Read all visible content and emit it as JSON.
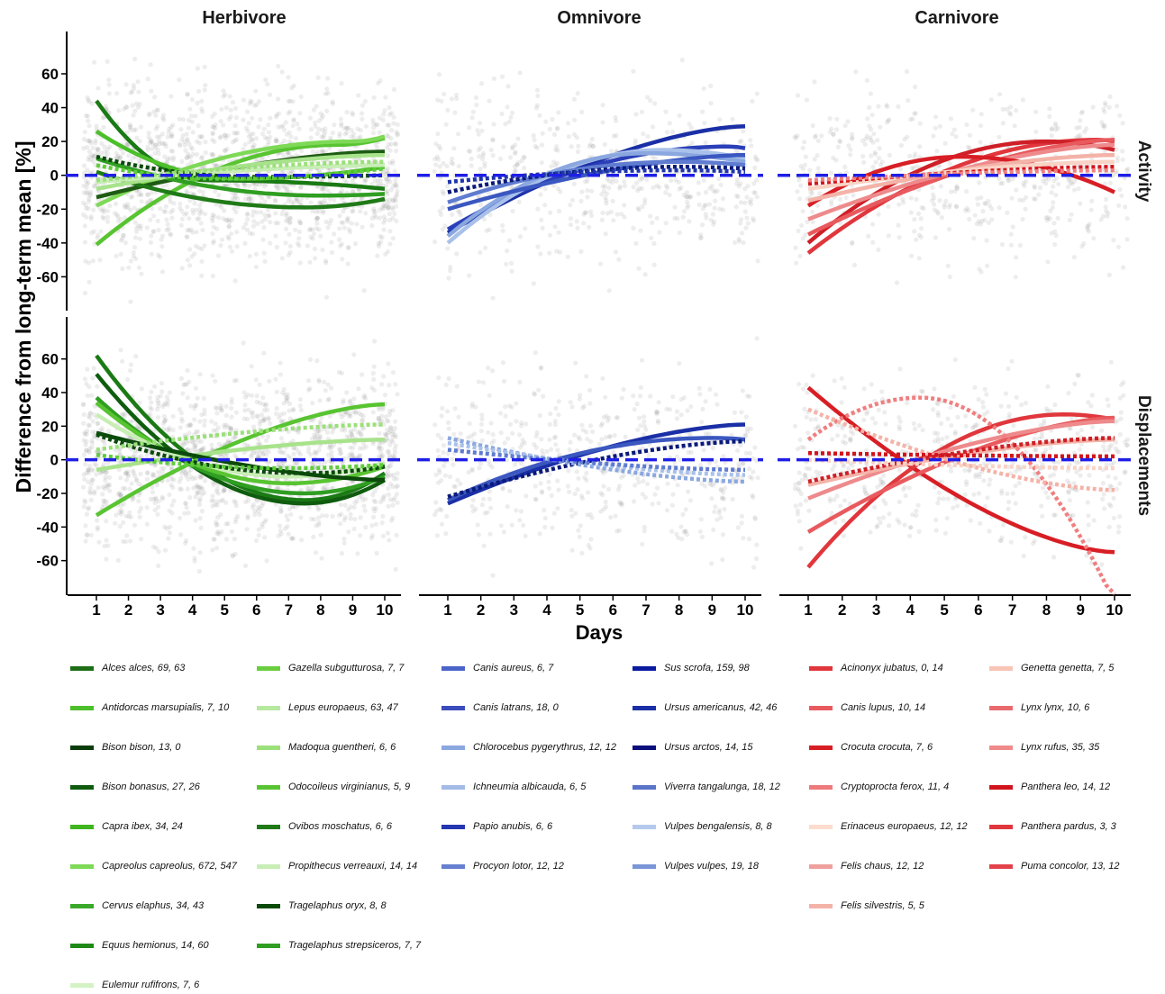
{
  "chart_data": {
    "type": "line",
    "ylabel": "Difference from long-term mean [%]",
    "xlabel": "Days",
    "x": [
      1,
      2,
      3,
      4,
      5,
      6,
      7,
      8,
      9,
      10
    ],
    "x_ticks": [
      "1",
      "2",
      "3",
      "4",
      "5",
      "6",
      "7",
      "8",
      "9",
      "10"
    ],
    "y_ticks": [
      "-60",
      "-40",
      "-20",
      "0",
      "20",
      "40",
      "60"
    ],
    "ylim": [
      -80,
      85
    ],
    "grid": false,
    "reference_line": {
      "y": 0,
      "style": "dashed",
      "color": "#1f1fe6"
    },
    "columns": [
      "Herbivore",
      "Omnivore",
      "Carnivore"
    ],
    "rows": [
      "Activity",
      "Displacements"
    ],
    "panels": [
      {
        "column": "Herbivore",
        "row": "Activity",
        "series": [
          {
            "start": 44,
            "end": -8,
            "peak": -3,
            "peak_x": 4.5,
            "style": "solid",
            "color": "#1a7a14"
          },
          {
            "start": 26,
            "end": 5,
            "peak": -2,
            "peak_x": 5.5,
            "style": "solid",
            "color": "#4cbf2a"
          },
          {
            "start": -41,
            "end": 22,
            "peak": 18,
            "peak_x": 8.5,
            "style": "solid",
            "color": "#58c431"
          },
          {
            "start": -18,
            "end": 23,
            "peak": 20,
            "peak_x": 9,
            "style": "solid",
            "color": "#7ed957"
          },
          {
            "start": -13,
            "end": 14,
            "peak": 14,
            "peak_x": 10,
            "style": "solid",
            "color": "#1e5c14"
          },
          {
            "start": 2,
            "end": -14,
            "peak": -19,
            "peak_x": 7.5,
            "style": "solid",
            "color": "#1f7a17"
          },
          {
            "start": 10,
            "end": -11,
            "peak": -12,
            "peak_x": 8,
            "style": "solid",
            "color": "#2f9e22"
          },
          {
            "start": -8,
            "end": 12,
            "peak": 12,
            "peak_x": 10,
            "style": "solid",
            "color": "#a8e38c"
          },
          {
            "start": -4,
            "end": 6,
            "peak": 6,
            "peak_x": 10,
            "style": "solid",
            "color": "#c8eeb5"
          },
          {
            "start": 11,
            "end": 0,
            "peak": -1,
            "peak_x": 6,
            "style": "dotted",
            "color": "#0b4a0b"
          },
          {
            "start": 6,
            "end": 4,
            "peak": -2,
            "peak_x": 5,
            "style": "dotted",
            "color": "#5fcd3b"
          },
          {
            "start": -3,
            "end": 8,
            "peak": 8,
            "peak_x": 10,
            "style": "dotted",
            "color": "#9be07a"
          }
        ]
      },
      {
        "column": "Omnivore",
        "row": "Activity",
        "series": [
          {
            "start": -34,
            "end": 29,
            "peak": 29,
            "peak_x": 10,
            "style": "solid",
            "color": "#1a2fa6"
          },
          {
            "start": -32,
            "end": 16,
            "peak": 17,
            "peak_x": 9.5,
            "style": "solid",
            "color": "#2a3fb8"
          },
          {
            "start": -40,
            "end": 10,
            "peak": 15,
            "peak_x": 7.5,
            "style": "solid",
            "color": "#a9c1ea"
          },
          {
            "start": -36,
            "end": 8,
            "peak": 13,
            "peak_x": 7,
            "style": "solid",
            "color": "#8aa7df"
          },
          {
            "start": -20,
            "end": 12,
            "peak": 12,
            "peak_x": 10,
            "style": "solid",
            "color": "#3b57c0"
          },
          {
            "start": -16,
            "end": 6,
            "peak": 8,
            "peak_x": 8,
            "style": "solid",
            "color": "#5f7cd0"
          },
          {
            "start": -10,
            "end": 4,
            "peak": 5,
            "peak_x": 8,
            "style": "dotted",
            "color": "#0a1a7a"
          },
          {
            "start": -4,
            "end": 2,
            "peak": 3,
            "peak_x": 8,
            "style": "dotted",
            "color": "#1f35a8"
          }
        ]
      },
      {
        "column": "Carnivore",
        "row": "Activity",
        "series": [
          {
            "start": -46,
            "end": 20,
            "peak": 21,
            "peak_x": 9.5,
            "style": "solid",
            "color": "#e0363c"
          },
          {
            "start": -40,
            "end": 15,
            "peak": 20,
            "peak_x": 8,
            "style": "solid",
            "color": "#cf1f27"
          },
          {
            "start": -35,
            "end": 21,
            "peak": 21,
            "peak_x": 10,
            "style": "solid",
            "color": "#e85a5e"
          },
          {
            "start": -26,
            "end": 18,
            "peak": 18,
            "peak_x": 10,
            "style": "solid",
            "color": "#ee8a8c"
          },
          {
            "start": -18,
            "end": -10,
            "peak": 11,
            "peak_x": 5.5,
            "style": "solid",
            "color": "#d81e25"
          },
          {
            "start": -15,
            "end": 12,
            "peak": 12,
            "peak_x": 10,
            "style": "solid",
            "color": "#f4b3a8"
          },
          {
            "start": -8,
            "end": 8,
            "peak": 8,
            "peak_x": 10,
            "style": "solid",
            "color": "#f9d3c5"
          },
          {
            "start": -5,
            "end": 5,
            "peak": 5,
            "peak_x": 10,
            "style": "dotted",
            "color": "#d2141c"
          },
          {
            "start": -3,
            "end": 3,
            "peak": 3,
            "peak_x": 10,
            "style": "dotted",
            "color": "#f07f80"
          }
        ]
      },
      {
        "column": "Herbivore",
        "row": "Displacements",
        "series": [
          {
            "start": 62,
            "end": -8,
            "peak": -24,
            "peak_x": 7.5,
            "style": "solid",
            "color": "#1a7a14"
          },
          {
            "start": 51,
            "end": -12,
            "peak": -26,
            "peak_x": 7.5,
            "style": "solid",
            "color": "#0f5c0f"
          },
          {
            "start": 37,
            "end": -10,
            "peak": -20,
            "peak_x": 7.5,
            "style": "solid",
            "color": "#2f9e22"
          },
          {
            "start": 34,
            "end": -4,
            "peak": -14,
            "peak_x": 7,
            "style": "solid",
            "color": "#58c431"
          },
          {
            "start": 27,
            "end": -2,
            "peak": -10,
            "peak_x": 7,
            "style": "solid",
            "color": "#c8eeb5"
          },
          {
            "start": -33,
            "end": 33,
            "peak": 33,
            "peak_x": 10,
            "style": "solid",
            "color": "#58c431"
          },
          {
            "start": -6,
            "end": 12,
            "peak": 12,
            "peak_x": 10,
            "style": "solid",
            "color": "#a8e38c"
          },
          {
            "start": 16,
            "end": -12,
            "peak": -12,
            "peak_x": 10,
            "style": "solid",
            "color": "#0b4a0b"
          },
          {
            "start": 15,
            "end": -4,
            "peak": -8,
            "peak_x": 7.5,
            "style": "dotted",
            "color": "#0b4a0b"
          },
          {
            "start": 6,
            "end": 21,
            "peak": 21,
            "peak_x": 10,
            "style": "dotted",
            "color": "#9be07a"
          },
          {
            "start": 3,
            "end": -3,
            "peak": -5,
            "peak_x": 7,
            "style": "dotted",
            "color": "#5fcd3b"
          }
        ]
      },
      {
        "column": "Omnivore",
        "row": "Displacements",
        "series": [
          {
            "start": -26,
            "end": 21,
            "peak": 21,
            "peak_x": 10,
            "style": "solid",
            "color": "#1a2fa6"
          },
          {
            "start": -24,
            "end": 12,
            "peak": 13,
            "peak_x": 9,
            "style": "solid",
            "color": "#3b57c0"
          },
          {
            "start": -22,
            "end": 11,
            "peak": 11,
            "peak_x": 10,
            "style": "dotted",
            "color": "#0a1a7a"
          },
          {
            "start": 13,
            "end": -13,
            "peak": -13,
            "peak_x": 10,
            "style": "dotted",
            "color": "#8aa7df"
          },
          {
            "start": 10,
            "end": -9,
            "peak": -9,
            "peak_x": 10,
            "style": "dotted",
            "color": "#a9c1ea"
          },
          {
            "start": 6,
            "end": -6,
            "peak": -6,
            "peak_x": 10,
            "style": "dotted",
            "color": "#5f7cd0"
          }
        ]
      },
      {
        "column": "Carnivore",
        "row": "Displacements",
        "series": [
          {
            "start": 43,
            "end": -55,
            "peak": -55,
            "peak_x": 10,
            "style": "solid",
            "color": "#d81e25"
          },
          {
            "start": -64,
            "end": 24,
            "peak": 27,
            "peak_x": 8.5,
            "style": "solid",
            "color": "#e0363c"
          },
          {
            "start": -43,
            "end": 25,
            "peak": 25,
            "peak_x": 10,
            "style": "solid",
            "color": "#e85a5e"
          },
          {
            "start": -23,
            "end": 23,
            "peak": 23,
            "peak_x": 10,
            "style": "solid",
            "color": "#ee8a8c"
          },
          {
            "start": -15,
            "end": 12,
            "peak": 12,
            "peak_x": 10,
            "style": "solid",
            "color": "#f4b3a8"
          },
          {
            "start": 12,
            "end": -85,
            "peak": 37,
            "peak_x": 4.3,
            "style": "dotted",
            "color": "#f07f80"
          },
          {
            "start": 30,
            "end": -18,
            "peak": -18,
            "peak_x": 10,
            "style": "dotted",
            "color": "#f4b3a8"
          },
          {
            "start": -13,
            "end": 13,
            "peak": 13,
            "peak_x": 10,
            "style": "dotted",
            "color": "#cf1f27"
          },
          {
            "start": 4,
            "end": 2,
            "peak": 2,
            "peak_x": 10,
            "style": "dotted",
            "color": "#d2141c"
          },
          {
            "start": 0,
            "end": -5,
            "peak": -5,
            "peak_x": 10,
            "style": "dotted",
            "color": "#f9d3c5"
          }
        ]
      }
    ],
    "legend": {
      "position": "bottom",
      "groups": [
        {
          "column": "Herbivore",
          "items": [
            {
              "label": "Alces alces, 69, 63",
              "color": "#1e6e17"
            },
            {
              "label": "Antidorcas marsupialis, 7, 10",
              "color": "#4cbf2a"
            },
            {
              "label": "Bison bison, 13, 0",
              "color": "#0b3d0b"
            },
            {
              "label": "Bison bonasus, 27, 26",
              "color": "#0f5c0f"
            },
            {
              "label": "Capra ibex, 34, 24",
              "color": "#3fb51f"
            },
            {
              "label": "Capreolus capreolus, 672, 547",
              "color": "#7ed957"
            },
            {
              "label": "Cervus elaphus, 34, 43",
              "color": "#3aa82a"
            },
            {
              "label": "Equus hemionus, 14, 60",
              "color": "#1f8a17"
            },
            {
              "label": "Eulemur rufifrons, 7, 6",
              "color": "#d4f2c4"
            },
            {
              "label": "Gazella subgutturosa, 7, 7",
              "color": "#6acd3f"
            },
            {
              "label": "Lepus europaeus, 63, 47",
              "color": "#b7e89f"
            },
            {
              "label": "Madoqua guentheri, 6, 6",
              "color": "#9be07a"
            },
            {
              "label": "Odocoileus virginianus, 5, 9",
              "color": "#58c431"
            },
            {
              "label": "Ovibos moschatus, 6, 6",
              "color": "#1f7a17"
            },
            {
              "label": "Propithecus verreauxi, 14, 14",
              "color": "#c8eeb5"
            },
            {
              "label": "Tragelaphus oryx, 8, 8",
              "color": "#0b4a0b"
            },
            {
              "label": "Tragelaphus strepsiceros, 7, 7",
              "color": "#2f9e22"
            }
          ]
        },
        {
          "column": "Omnivore",
          "items": [
            {
              "label": "Canis aureus, 6, 7",
              "color": "#4a64c8"
            },
            {
              "label": "Canis latrans, 18, 0",
              "color": "#3b4cbc"
            },
            {
              "label": "Chlorocebus pygerythrus, 12, 12",
              "color": "#8aa7df"
            },
            {
              "label": "Ichneumia albicauda, 6, 5",
              "color": "#a3bbe6"
            },
            {
              "label": "Papio anubis, 6, 6",
              "color": "#2437b0"
            },
            {
              "label": "Procyon lotor, 12, 12",
              "color": "#6680d0"
            },
            {
              "label": "Sus scrofa, 159, 98",
              "color": "#0a1aa0"
            },
            {
              "label": "Ursus americanus, 42, 46",
              "color": "#1a2fa6"
            },
            {
              "label": "Ursus arctos, 14, 15",
              "color": "#0a0f7a"
            },
            {
              "label": "Viverra tangalunga, 18, 12",
              "color": "#5a74c8"
            },
            {
              "label": "Vulpes bengalensis, 8, 8",
              "color": "#b5c9ec"
            },
            {
              "label": "Vulpes vulpes, 19, 18",
              "color": "#7a95d8"
            }
          ]
        },
        {
          "column": "Carnivore",
          "items": [
            {
              "label": "Acinonyx jubatus, 0, 14",
              "color": "#e0363c"
            },
            {
              "label": "Canis lupus, 10, 14",
              "color": "#e85a5e"
            },
            {
              "label": "Crocuta crocuta, 7, 6",
              "color": "#d81e25"
            },
            {
              "label": "Cryptoprocta ferox, 11, 4",
              "color": "#ee7a7c"
            },
            {
              "label": "Erinaceus europaeus, 12, 12",
              "color": "#fbdccf"
            },
            {
              "label": "Felis chaus, 12, 12",
              "color": "#f0a09c"
            },
            {
              "label": "Felis silvestris, 5, 5",
              "color": "#f4b3a8"
            },
            {
              "label": "Genetta genetta, 7, 5",
              "color": "#f7c4b6"
            },
            {
              "label": "Lynx lynx, 10, 6",
              "color": "#e96a6c"
            },
            {
              "label": "Lynx rufus, 35, 35",
              "color": "#f08a8a"
            },
            {
              "label": "Panthera leo, 14, 12",
              "color": "#d2141c"
            },
            {
              "label": "Panthera pardus, 3, 3",
              "color": "#e0363c"
            },
            {
              "label": "Puma concolor, 13, 12",
              "color": "#e2424a"
            }
          ]
        }
      ]
    }
  }
}
